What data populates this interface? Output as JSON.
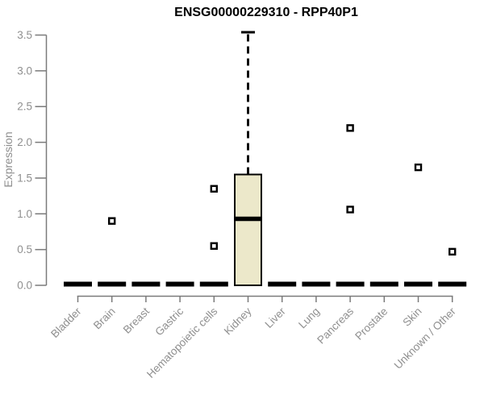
{
  "chart_data": {
    "type": "boxplot",
    "title": "ENSG00000229310 - RPP40P1",
    "ylabel": "Expression",
    "xlabel": "",
    "ylim": [
      0,
      3.5
    ],
    "yticks": [
      "0.0",
      "0.5",
      "1.0",
      "1.5",
      "2.0",
      "2.5",
      "3.0",
      "3.5"
    ],
    "grid": false,
    "legend": null,
    "categories": [
      "Bladder",
      "Brain",
      "Breast",
      "Gastric",
      "Hematopoietic cells",
      "Kidney",
      "Liver",
      "Lung",
      "Pancreas",
      "Prostate",
      "Skin",
      "Unknown / Other"
    ],
    "series": [
      {
        "category": "Bladder",
        "min": 0,
        "q1": 0,
        "median": 0,
        "q3": 0,
        "max": 0,
        "outliers": []
      },
      {
        "category": "Brain",
        "min": 0,
        "q1": 0,
        "median": 0,
        "q3": 0,
        "max": 0,
        "outliers": [
          0.9
        ]
      },
      {
        "category": "Breast",
        "min": 0,
        "q1": 0,
        "median": 0,
        "q3": 0,
        "max": 0,
        "outliers": []
      },
      {
        "category": "Gastric",
        "min": 0,
        "q1": 0,
        "median": 0,
        "q3": 0,
        "max": 0,
        "outliers": []
      },
      {
        "category": "Hematopoietic cells",
        "min": 0,
        "q1": 0,
        "median": 0,
        "q3": 0,
        "max": 0,
        "outliers": [
          1.35,
          0.55
        ]
      },
      {
        "category": "Kidney",
        "min": 0,
        "q1": 0,
        "median": 0.93,
        "q3": 1.55,
        "max": 3.54,
        "outliers": []
      },
      {
        "category": "Liver",
        "min": 0,
        "q1": 0,
        "median": 0,
        "q3": 0,
        "max": 0,
        "outliers": []
      },
      {
        "category": "Lung",
        "min": 0,
        "q1": 0,
        "median": 0,
        "q3": 0,
        "max": 0,
        "outliers": []
      },
      {
        "category": "Pancreas",
        "min": 0,
        "q1": 0,
        "median": 0,
        "q3": 0,
        "max": 0,
        "outliers": [
          2.2,
          1.06
        ]
      },
      {
        "category": "Prostate",
        "min": 0,
        "q1": 0,
        "median": 0,
        "q3": 0,
        "max": 0,
        "outliers": []
      },
      {
        "category": "Skin",
        "min": 0,
        "q1": 0,
        "median": 0,
        "q3": 0,
        "max": 0,
        "outliers": [
          1.65
        ]
      },
      {
        "category": "Unknown / Other",
        "min": 0,
        "q1": 0,
        "median": 0,
        "q3": 0,
        "max": 0,
        "outliers": [
          0.47
        ]
      }
    ],
    "colors": {
      "box_fill": "#ece8ca",
      "box_stroke": "#000000",
      "median": "#000000",
      "whisker": "#000000",
      "outlier_stroke": "#000000",
      "outlier_fill": "#ffffff",
      "axis": "#7a7a7a",
      "tick_label": "#8f8f8f",
      "title": "#000000",
      "background": "#ffffff"
    }
  }
}
